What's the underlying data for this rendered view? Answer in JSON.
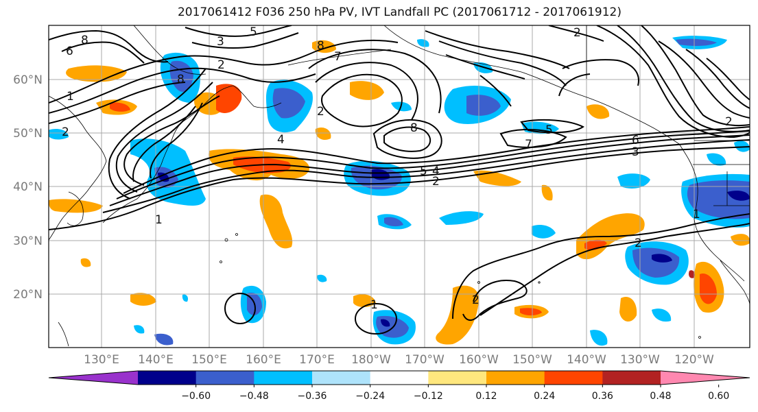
{
  "title": "2017061412 F036 250 hPa PV, IVT Landfall PC (2017061712 - 2017061912)",
  "lat_labels": [
    "60°N",
    "50°N",
    "40°N",
    "30°N",
    "20°N"
  ],
  "lon_labels": [
    "130°E",
    "140°E",
    "150°E",
    "160°E",
    "170°E",
    "180°W",
    "170°W",
    "160°W",
    "150°W",
    "140°W",
    "130°W",
    "120°W"
  ],
  "colorbar": {
    "ticks": [
      "−0.60",
      "−0.48",
      "−0.36",
      "−0.24",
      "−0.12",
      "0.12",
      "0.24",
      "0.36",
      "0.48",
      "0.60"
    ],
    "colors": [
      "#9932cc",
      "#00008b",
      "#3b5fcd",
      "#00bfff",
      "#aee3fb",
      "#ffffff",
      "#ffe77e",
      "#ffa500",
      "#ff4500",
      "#b22222",
      "#ff88b0"
    ]
  },
  "contour_labels": {
    "l1": "8",
    "l2": "6",
    "l3": "5",
    "l4": "3",
    "l5": "2",
    "l6": "1",
    "l7": "2",
    "l8": "8",
    "l9": "8",
    "l10": "7",
    "l11": "8",
    "l12": "2",
    "l13": "4",
    "l14": "6",
    "l15": "3",
    "l16": "2",
    "l17": "5",
    "l18": "7",
    "l19": "5",
    "l20": "4",
    "l21": "2",
    "l22": "1",
    "l23": "1",
    "l24": "2",
    "l25": "1",
    "l26": "2",
    "l27": "2"
  }
}
